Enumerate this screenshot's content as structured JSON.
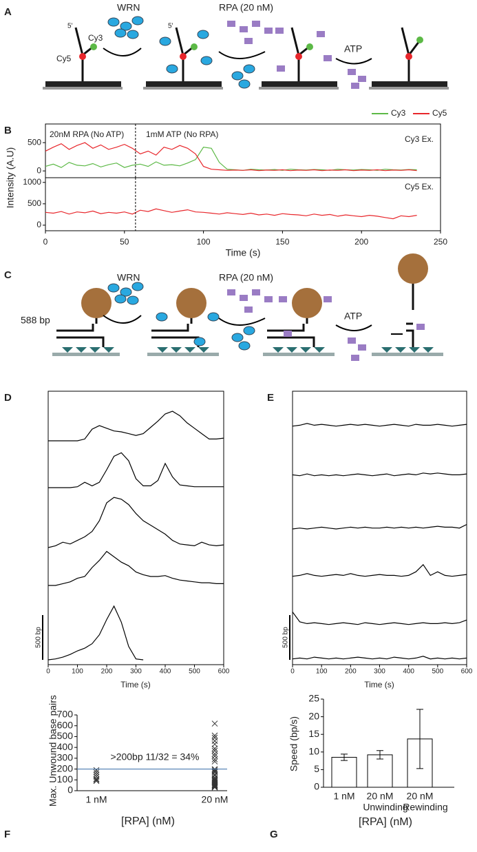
{
  "panel_labels": [
    "A",
    "B",
    "C",
    "D",
    "E",
    "F",
    "G"
  ],
  "diagram_a": {
    "wrn": "WRN",
    "rpa": "RPA (20 nM)",
    "atp": "ATP",
    "five_prime": "5'",
    "cy3": "Cy3",
    "cy5": "Cy5"
  },
  "diagram_c": {
    "wrn": "WRN",
    "rpa": "RPA (20 nM)",
    "atp": "ATP",
    "length": "588 bp"
  },
  "chart_data": [
    {
      "type": "line",
      "x": [
        0,
        5,
        10,
        15,
        20,
        25,
        30,
        35,
        40,
        45,
        50,
        55,
        60,
        65,
        70,
        75,
        80,
        85,
        90,
        95,
        100,
        105,
        110,
        115,
        120,
        125,
        130,
        135,
        140,
        145,
        150,
        155,
        160,
        165,
        170,
        175,
        180,
        185,
        190,
        195,
        200,
        205,
        210,
        215,
        220,
        225,
        230,
        235
      ],
      "series": [
        {
          "name": "Cy3",
          "color": "#5cb946",
          "values": [
            80,
            120,
            60,
            150,
            100,
            90,
            130,
            70,
            110,
            140,
            60,
            100,
            120,
            80,
            160,
            100,
            110,
            90,
            140,
            200,
            420,
            400,
            150,
            30,
            20,
            10,
            30,
            20,
            15,
            25,
            10,
            30,
            20,
            15,
            25,
            20,
            10,
            30,
            20,
            15,
            25,
            20,
            10,
            30,
            20,
            15,
            25,
            20
          ]
        },
        {
          "name": "Cy5",
          "color": "#e8262b",
          "values": [
            350,
            420,
            480,
            380,
            450,
            500,
            400,
            460,
            380,
            420,
            470,
            400,
            300,
            350,
            280,
            420,
            380,
            450,
            400,
            300,
            80,
            30,
            20,
            10,
            15,
            10,
            20,
            5,
            15,
            10,
            20,
            5,
            15,
            10,
            20,
            5,
            15,
            10,
            20,
            5,
            15,
            10,
            20,
            5,
            15,
            10,
            20,
            5
          ]
        }
      ],
      "xlim": [
        0,
        250
      ],
      "ylim": [
        -120,
        830
      ],
      "yticks": [
        0,
        500
      ],
      "ylabel": "Intensity (A.U)",
      "annotations": [
        "20nM RPA (No ATP)",
        "1mM ATP (No RPA)",
        "Cy3 Ex."
      ],
      "event_x": 57,
      "legend": "top-right"
    },
    {
      "type": "line",
      "x": [
        0,
        5,
        10,
        15,
        20,
        25,
        30,
        35,
        40,
        45,
        50,
        55,
        60,
        65,
        70,
        75,
        80,
        85,
        90,
        95,
        100,
        105,
        110,
        115,
        120,
        125,
        130,
        135,
        140,
        145,
        150,
        155,
        160,
        165,
        170,
        175,
        180,
        185,
        190,
        195,
        200,
        205,
        210,
        215,
        220,
        225,
        230,
        235
      ],
      "series": [
        {
          "color": "#e8262b",
          "values": [
            300,
            280,
            320,
            260,
            310,
            290,
            330,
            270,
            300,
            280,
            310,
            260,
            350,
            320,
            380,
            340,
            300,
            330,
            360,
            310,
            300,
            280,
            260,
            290,
            270,
            250,
            280,
            240,
            260,
            230,
            270,
            250,
            240,
            220,
            260,
            230,
            250,
            210,
            240,
            220,
            200,
            230,
            210,
            180,
            150,
            220,
            200,
            230
          ]
        }
      ],
      "xlim": [
        0,
        250
      ],
      "xticks": [
        0,
        50,
        100,
        150,
        200,
        250
      ],
      "ylim": [
        -130,
        1110
      ],
      "yticks": [
        0,
        500,
        1000
      ],
      "xlabel": "Time (s)",
      "annotations": [
        "Cy5 Ex."
      ],
      "event_x": 57
    },
    {
      "type": "line",
      "x": [
        0,
        25,
        50,
        75,
        100,
        125,
        150,
        175,
        200,
        225,
        250,
        275,
        300,
        325,
        350,
        375,
        400,
        425,
        450,
        475,
        500,
        525,
        550,
        575,
        600
      ],
      "series": [
        {
          "color": "#000000",
          "values": [
            0,
            0,
            0,
            0,
            0,
            20,
            130,
            170,
            140,
            110,
            100,
            80,
            60,
            80,
            150,
            220,
            300,
            330,
            280,
            200,
            140,
            80,
            20,
            20,
            30
          ]
        },
        {
          "color": "#000000",
          "values": [
            0,
            0,
            0,
            0,
            10,
            60,
            20,
            60,
            200,
            350,
            390,
            300,
            100,
            20,
            20,
            80,
            270,
            120,
            30,
            20,
            10,
            10,
            10,
            10,
            10
          ]
        },
        {
          "color": "#000000",
          "values": [
            0,
            20,
            60,
            40,
            80,
            120,
            180,
            300,
            500,
            560,
            540,
            480,
            380,
            300,
            250,
            200,
            150,
            80,
            40,
            30,
            20,
            60,
            30,
            20,
            30
          ]
        },
        {
          "color": "#000000",
          "values": [
            0,
            0,
            20,
            40,
            80,
            100,
            200,
            280,
            380,
            320,
            260,
            220,
            150,
            120,
            100,
            100,
            110,
            80,
            60,
            50,
            40,
            30,
            30,
            20,
            20
          ]
        },
        {
          "color": "#000000",
          "values": [
            0,
            10,
            30,
            60,
            100,
            130,
            180,
            280,
            450,
            600,
            420,
            150,
            10,
            0,
            null,
            null,
            null,
            null,
            null,
            null,
            null,
            null,
            null,
            null,
            null
          ]
        }
      ],
      "xlim": [
        0,
        600
      ],
      "xticks": [
        0,
        100,
        200,
        300,
        400,
        500,
        600
      ],
      "xlabel": "Time (s)",
      "scale_bar": {
        "value": 500,
        "label": "500 bp"
      }
    },
    {
      "type": "line",
      "x": [
        0,
        25,
        50,
        75,
        100,
        125,
        150,
        175,
        200,
        225,
        250,
        275,
        300,
        325,
        350,
        375,
        400,
        425,
        450,
        475,
        500,
        525,
        550,
        575,
        600
      ],
      "series": [
        {
          "color": "#000000",
          "values": [
            10,
            20,
            40,
            20,
            30,
            20,
            10,
            20,
            30,
            20,
            30,
            20,
            10,
            20,
            30,
            20,
            10,
            30,
            20,
            20,
            30,
            20,
            10,
            20,
            30
          ]
        },
        {
          "color": "#000000",
          "values": [
            20,
            10,
            30,
            10,
            20,
            10,
            20,
            10,
            20,
            30,
            20,
            10,
            20,
            30,
            10,
            20,
            30,
            20,
            40,
            30,
            40,
            30,
            20,
            20,
            30
          ]
        },
        {
          "color": "#000000",
          "values": [
            0,
            10,
            0,
            10,
            20,
            10,
            0,
            10,
            20,
            10,
            20,
            10,
            10,
            20,
            10,
            20,
            10,
            20,
            10,
            20,
            30,
            20,
            20,
            10,
            50
          ]
        },
        {
          "color": "#000000",
          "values": [
            10,
            20,
            40,
            20,
            10,
            20,
            30,
            20,
            40,
            20,
            10,
            20,
            30,
            20,
            20,
            10,
            20,
            60,
            140,
            20,
            60,
            20,
            10,
            20,
            30
          ]
        },
        {
          "color": "#000000",
          "values": [
            150,
            40,
            20,
            30,
            20,
            10,
            20,
            30,
            20,
            10,
            30,
            20,
            10,
            20,
            30,
            20,
            10,
            20,
            30,
            20,
            20,
            30,
            20,
            30,
            60
          ]
        },
        {
          "color": "#000000",
          "values": [
            10,
            20,
            10,
            30,
            20,
            10,
            20,
            10,
            20,
            30,
            20,
            10,
            20,
            10,
            30,
            20,
            10,
            20,
            40,
            10,
            20,
            10,
            20,
            10,
            20
          ]
        }
      ],
      "xlim": [
        0,
        600
      ],
      "xticks": [
        0,
        100,
        200,
        300,
        400,
        500,
        600
      ],
      "xlabel": "Time (s)",
      "scale_bar": {
        "value": 500,
        "label": "500 bp"
      }
    },
    {
      "type": "scatter",
      "categories": [
        "1 nM",
        "20 nM"
      ],
      "series": [
        {
          "color": "#333333",
          "values": [
            90,
            100,
            110,
            130,
            150,
            170,
            190
          ]
        },
        {
          "color": "#333333",
          "values": [
            620,
            510,
            490,
            460,
            430,
            390,
            370,
            340,
            320,
            290,
            270,
            200,
            190,
            180,
            170,
            150,
            140,
            120,
            110,
            100,
            95,
            90,
            80,
            75,
            70,
            60,
            55,
            50,
            45,
            40,
            35,
            30
          ]
        }
      ],
      "ylim": [
        0,
        700
      ],
      "yticks": [
        0,
        100,
        200,
        300,
        400,
        500,
        600,
        700
      ],
      "hline": 200,
      "hline_color": "#4a7ab0",
      "annotation": ">200bp 11/32 = 34%",
      "ylabel": "Max. Unwound base pairs",
      "xlabel": "[RPA] (nM)"
    },
    {
      "type": "bar",
      "categories": [
        "1 nM",
        "20 nM",
        "20 nM"
      ],
      "category_sublabels": [
        null,
        "Unwinding",
        "Rewinding"
      ],
      "values": [
        8.5,
        9.2,
        13.7
      ],
      "errors": [
        0.9,
        1.2,
        8.4
      ],
      "color": "#ffffff",
      "ylim": [
        0,
        25
      ],
      "yticks": [
        0,
        5,
        10,
        15,
        20,
        25
      ],
      "ylabel": "Speed (bp/s)",
      "xlabel": "[RPA] (nM)"
    }
  ]
}
